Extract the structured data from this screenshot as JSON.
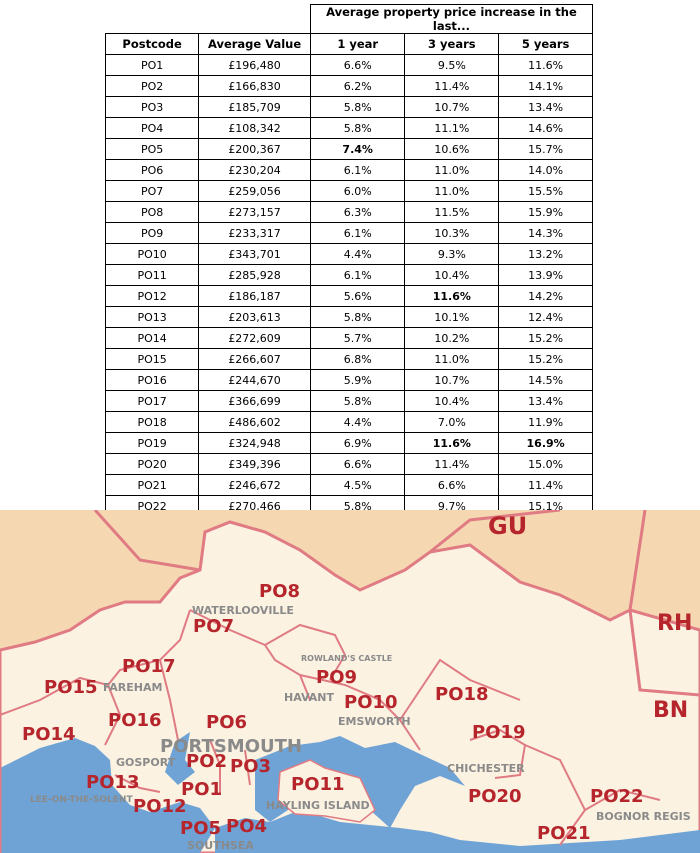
{
  "table": {
    "super_header": "Average property price increase in the last...",
    "columns": [
      "Postcode",
      "Average Value",
      "1 year",
      "3 years",
      "5 years"
    ],
    "rows": [
      [
        "PO1",
        "£196,480",
        "6.6%",
        "9.5%",
        "11.6%"
      ],
      [
        "PO2",
        "£166,830",
        "6.2%",
        "11.4%",
        "14.1%"
      ],
      [
        "PO3",
        "£185,709",
        "5.8%",
        "10.7%",
        "13.4%"
      ],
      [
        "PO4",
        "£108,342",
        "5.8%",
        "11.1%",
        "14.6%"
      ],
      [
        "PO5",
        "£200,367",
        "7.4%",
        "10.6%",
        "15.7%"
      ],
      [
        "PO6",
        "£230,204",
        "6.1%",
        "11.0%",
        "14.0%"
      ],
      [
        "PO7",
        "£259,056",
        "6.0%",
        "11.0%",
        "15.5%"
      ],
      [
        "PO8",
        "£273,157",
        "6.3%",
        "11.5%",
        "15.9%"
      ],
      [
        "PO9",
        "£233,317",
        "6.1%",
        "10.3%",
        "14.3%"
      ],
      [
        "PO10",
        "£343,701",
        "4.4%",
        "9.3%",
        "13.2%"
      ],
      [
        "PO11",
        "£285,928",
        "6.1%",
        "10.4%",
        "13.9%"
      ],
      [
        "PO12",
        "£186,187",
        "5.6%",
        "11.6%",
        "14.2%"
      ],
      [
        "PO13",
        "£203,613",
        "5.8%",
        "10.1%",
        "12.4%"
      ],
      [
        "PO14",
        "£272,609",
        "5.7%",
        "10.2%",
        "15.2%"
      ],
      [
        "PO15",
        "£266,607",
        "6.8%",
        "11.0%",
        "15.2%"
      ],
      [
        "PO16",
        "£244,670",
        "5.9%",
        "10.7%",
        "14.5%"
      ],
      [
        "PO17",
        "£366,699",
        "5.8%",
        "10.4%",
        "13.4%"
      ],
      [
        "PO18",
        "£486,602",
        "4.4%",
        "7.0%",
        "11.9%"
      ],
      [
        "PO19",
        "£324,948",
        "6.9%",
        "11.6%",
        "16.9%"
      ],
      [
        "PO20",
        "£349,396",
        "6.6%",
        "11.4%",
        "15.0%"
      ],
      [
        "PO21",
        "£246,672",
        "4.5%",
        "6.6%",
        "11.4%"
      ],
      [
        "PO22",
        "£270,466",
        "5.8%",
        "9.7%",
        "15.1%"
      ]
    ],
    "bold_cells": [
      [
        4,
        2
      ],
      [
        11,
        3
      ],
      [
        18,
        3
      ],
      [
        18,
        4
      ]
    ]
  },
  "map": {
    "colors": {
      "sea": "#6fa3d6",
      "land_inside": "#fbf2e2",
      "land_outside": "#f5d7b2",
      "boundary": "#e07b83",
      "label": "#b5252b",
      "town": "#8a8a8a"
    },
    "area_labels": {
      "gu": "GU",
      "rh": "RH",
      "bn": "BN",
      "po1": "PO1",
      "po2": "PO2",
      "po3": "PO3",
      "po4": "PO4",
      "po5": "PO5",
      "po6": "PO6",
      "po7": "PO7",
      "po8": "PO8",
      "po9": "PO9",
      "po10": "PO10",
      "po11": "PO11",
      "po12": "PO12",
      "po13": "PO13",
      "po14": "PO14",
      "po15": "PO15",
      "po16": "PO16",
      "po17": "PO17",
      "po18": "PO18",
      "po19": "PO19",
      "po20": "PO20",
      "po21": "PO21",
      "po22": "PO22"
    },
    "town_labels": {
      "waterlooville": "WATERLOOVILLE",
      "rowlands_castle": "ROWLAND'S CASTLE",
      "fareham": "FAREHAM",
      "havant": "HAVANT",
      "emsworth": "EMSWORTH",
      "portsmouth": "PORTSMOUTH",
      "gosport": "GOSPORT",
      "chichester": "CHICHESTER",
      "lee_on_the_solent": "LEE-ON-THE-SOLENT",
      "hayling_island": "HAYLING ISLAND",
      "bognor_regis": "BOGNOR REGIS",
      "southsea": "SOUTHSEA"
    }
  }
}
